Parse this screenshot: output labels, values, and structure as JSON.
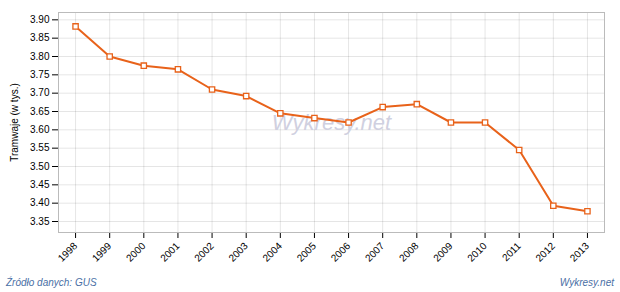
{
  "chart_data": {
    "type": "line",
    "ylabel": "Tramwaje (w tys.)",
    "x": [
      1998,
      1999,
      2000,
      2001,
      2002,
      2003,
      2004,
      2005,
      2006,
      2007,
      2008,
      2009,
      2010,
      2011,
      2012,
      2013
    ],
    "values": [
      3.882,
      3.8,
      3.775,
      3.765,
      3.71,
      3.692,
      3.645,
      3.632,
      3.62,
      3.662,
      3.67,
      3.62,
      3.62,
      3.545,
      3.393,
      3.378
    ],
    "color": "#e8621a",
    "marker": "square",
    "xlim": [
      1997.5,
      2013.5
    ],
    "xticks": [
      1998,
      1999,
      2000,
      2001,
      2002,
      2003,
      2004,
      2005,
      2006,
      2007,
      2008,
      2009,
      2010,
      2011,
      2012,
      2013
    ],
    "ylim": [
      3.32,
      3.92
    ],
    "yticks": [
      3.35,
      {
        "value": 3.4,
        "label": "3.40"
      },
      3.45,
      {
        "value": 3.5,
        "label": "3.50"
      },
      3.55,
      {
        "value": 3.6,
        "label": "3.60"
      },
      3.65,
      {
        "value": 3.7,
        "label": "3.70"
      },
      3.75,
      {
        "value": 3.8,
        "label": "3.80"
      },
      3.85,
      {
        "value": 3.9,
        "label": "3.90"
      }
    ],
    "grid": true,
    "annotations": [
      "Wykresy.net",
      "Źródło danych:  GUS",
      "Wykresy.net"
    ]
  }
}
